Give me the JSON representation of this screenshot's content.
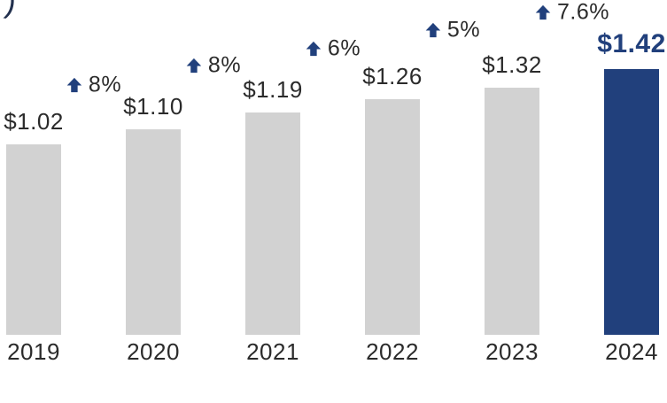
{
  "chart_data": {
    "type": "bar",
    "clipped_title_fragment": ")",
    "categories": [
      "2019",
      "2020",
      "2021",
      "2022",
      "2023",
      "2024"
    ],
    "values": [
      1.02,
      1.1,
      1.19,
      1.26,
      1.32,
      1.42
    ],
    "value_labels": [
      "$1.02",
      "$1.10",
      "$1.19",
      "$1.26",
      "$1.32",
      "$1.42"
    ],
    "changes": [
      "8%",
      "8%",
      "6%",
      "5%",
      "7.6%"
    ],
    "highlight_index": 5,
    "xlabel": "",
    "ylabel": "",
    "ylim": [
      0,
      1.8
    ],
    "grid": "off",
    "legend": "none",
    "colors": {
      "bar": "#D2D2D2",
      "highlight_bar": "#21407C",
      "arrow": "#21407C",
      "text": "#2B2B2B",
      "highlight_text": "#21407C"
    }
  }
}
